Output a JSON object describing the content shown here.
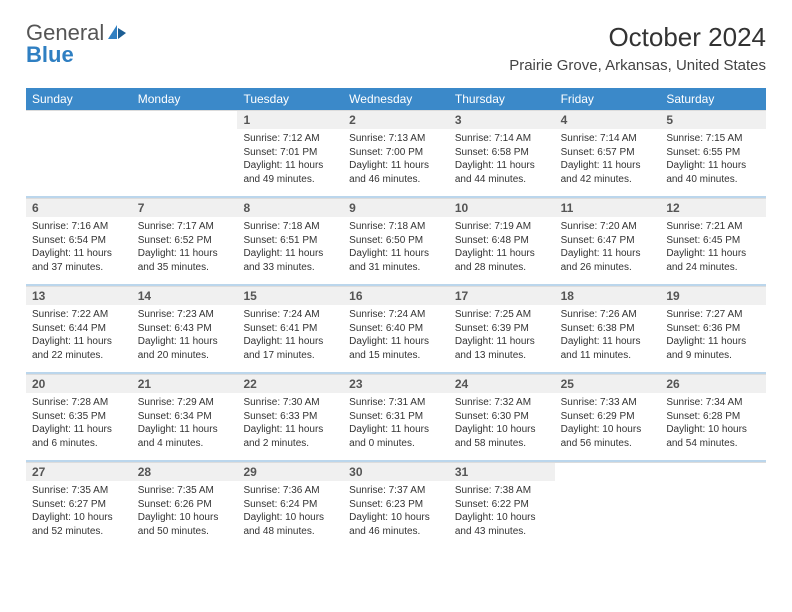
{
  "logo": {
    "word1": "General",
    "word2": "Blue"
  },
  "header": {
    "month_title": "October 2024",
    "location": "Prairie Grove, Arkansas, United States"
  },
  "calendar": {
    "type": "table",
    "background_color": "#ffffff",
    "header_bg": "#3b89c9",
    "header_fg": "#ffffff",
    "daynum_bg": "#f0f0f0",
    "body_fontsize": 10,
    "weekdays": [
      "Sunday",
      "Monday",
      "Tuesday",
      "Wednesday",
      "Thursday",
      "Friday",
      "Saturday"
    ],
    "weeks": [
      [
        null,
        null,
        {
          "n": "1",
          "sunrise": "7:12 AM",
          "sunset": "7:01 PM",
          "dl_h": 11,
          "dl_m": 49
        },
        {
          "n": "2",
          "sunrise": "7:13 AM",
          "sunset": "7:00 PM",
          "dl_h": 11,
          "dl_m": 46
        },
        {
          "n": "3",
          "sunrise": "7:14 AM",
          "sunset": "6:58 PM",
          "dl_h": 11,
          "dl_m": 44
        },
        {
          "n": "4",
          "sunrise": "7:14 AM",
          "sunset": "6:57 PM",
          "dl_h": 11,
          "dl_m": 42
        },
        {
          "n": "5",
          "sunrise": "7:15 AM",
          "sunset": "6:55 PM",
          "dl_h": 11,
          "dl_m": 40
        }
      ],
      [
        {
          "n": "6",
          "sunrise": "7:16 AM",
          "sunset": "6:54 PM",
          "dl_h": 11,
          "dl_m": 37
        },
        {
          "n": "7",
          "sunrise": "7:17 AM",
          "sunset": "6:52 PM",
          "dl_h": 11,
          "dl_m": 35
        },
        {
          "n": "8",
          "sunrise": "7:18 AM",
          "sunset": "6:51 PM",
          "dl_h": 11,
          "dl_m": 33
        },
        {
          "n": "9",
          "sunrise": "7:18 AM",
          "sunset": "6:50 PM",
          "dl_h": 11,
          "dl_m": 31
        },
        {
          "n": "10",
          "sunrise": "7:19 AM",
          "sunset": "6:48 PM",
          "dl_h": 11,
          "dl_m": 28
        },
        {
          "n": "11",
          "sunrise": "7:20 AM",
          "sunset": "6:47 PM",
          "dl_h": 11,
          "dl_m": 26
        },
        {
          "n": "12",
          "sunrise": "7:21 AM",
          "sunset": "6:45 PM",
          "dl_h": 11,
          "dl_m": 24
        }
      ],
      [
        {
          "n": "13",
          "sunrise": "7:22 AM",
          "sunset": "6:44 PM",
          "dl_h": 11,
          "dl_m": 22
        },
        {
          "n": "14",
          "sunrise": "7:23 AM",
          "sunset": "6:43 PM",
          "dl_h": 11,
          "dl_m": 20
        },
        {
          "n": "15",
          "sunrise": "7:24 AM",
          "sunset": "6:41 PM",
          "dl_h": 11,
          "dl_m": 17
        },
        {
          "n": "16",
          "sunrise": "7:24 AM",
          "sunset": "6:40 PM",
          "dl_h": 11,
          "dl_m": 15
        },
        {
          "n": "17",
          "sunrise": "7:25 AM",
          "sunset": "6:39 PM",
          "dl_h": 11,
          "dl_m": 13
        },
        {
          "n": "18",
          "sunrise": "7:26 AM",
          "sunset": "6:38 PM",
          "dl_h": 11,
          "dl_m": 11
        },
        {
          "n": "19",
          "sunrise": "7:27 AM",
          "sunset": "6:36 PM",
          "dl_h": 11,
          "dl_m": 9
        }
      ],
      [
        {
          "n": "20",
          "sunrise": "7:28 AM",
          "sunset": "6:35 PM",
          "dl_h": 11,
          "dl_m": 6
        },
        {
          "n": "21",
          "sunrise": "7:29 AM",
          "sunset": "6:34 PM",
          "dl_h": 11,
          "dl_m": 4
        },
        {
          "n": "22",
          "sunrise": "7:30 AM",
          "sunset": "6:33 PM",
          "dl_h": 11,
          "dl_m": 2
        },
        {
          "n": "23",
          "sunrise": "7:31 AM",
          "sunset": "6:31 PM",
          "dl_h": 11,
          "dl_m": 0
        },
        {
          "n": "24",
          "sunrise": "7:32 AM",
          "sunset": "6:30 PM",
          "dl_h": 10,
          "dl_m": 58
        },
        {
          "n": "25",
          "sunrise": "7:33 AM",
          "sunset": "6:29 PM",
          "dl_h": 10,
          "dl_m": 56
        },
        {
          "n": "26",
          "sunrise": "7:34 AM",
          "sunset": "6:28 PM",
          "dl_h": 10,
          "dl_m": 54
        }
      ],
      [
        {
          "n": "27",
          "sunrise": "7:35 AM",
          "sunset": "6:27 PM",
          "dl_h": 10,
          "dl_m": 52
        },
        {
          "n": "28",
          "sunrise": "7:35 AM",
          "sunset": "6:26 PM",
          "dl_h": 10,
          "dl_m": 50
        },
        {
          "n": "29",
          "sunrise": "7:36 AM",
          "sunset": "6:24 PM",
          "dl_h": 10,
          "dl_m": 48
        },
        {
          "n": "30",
          "sunrise": "7:37 AM",
          "sunset": "6:23 PM",
          "dl_h": 10,
          "dl_m": 46
        },
        {
          "n": "31",
          "sunrise": "7:38 AM",
          "sunset": "6:22 PM",
          "dl_h": 10,
          "dl_m": 43
        },
        null,
        null
      ]
    ]
  },
  "labels": {
    "sunrise_prefix": "Sunrise: ",
    "sunset_prefix": "Sunset: ",
    "daylight_tpl_a": "Daylight: ",
    "daylight_tpl_b": " hours",
    "daylight_tpl_c": "and ",
    "daylight_tpl_d": " minutes."
  }
}
